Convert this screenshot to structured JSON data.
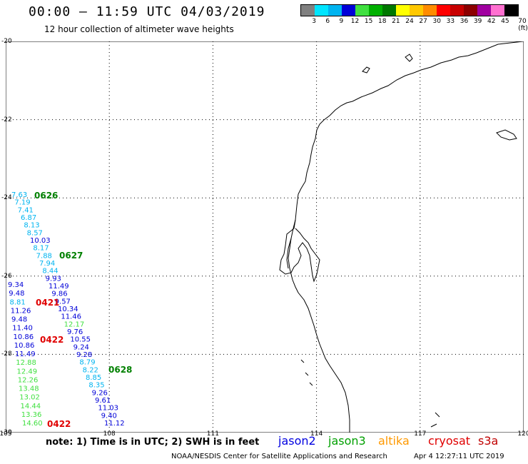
{
  "header": {
    "title": "00:00 – 11:59 UTC 04/03/2019",
    "subtitle": "12 hour collection of altimeter wave heights"
  },
  "color_scale": {
    "labels": [
      "3",
      "6",
      "9",
      "12",
      "15",
      "18",
      "21",
      "24",
      "27",
      "30",
      "33",
      "36",
      "39",
      "42",
      "45",
      "70 (ft)"
    ],
    "colors": [
      "#808080",
      "#00e5ff",
      "#00b4f0",
      "#0000d8",
      "#40e040",
      "#00b000",
      "#007800",
      "#ffff00",
      "#ffc800",
      "#ff8c00",
      "#ff0000",
      "#c80000",
      "#8c0000",
      "#a000a0",
      "#ff70d0",
      "#000000"
    ]
  },
  "map": {
    "lat_range": [
      -30,
      -20
    ],
    "lon_range": [
      105,
      120
    ],
    "lat_ticks": [
      "-30",
      "-28",
      "-26",
      "-24",
      "-22",
      "-20"
    ],
    "lon_ticks": [
      "105",
      "108",
      "111",
      "114",
      "117",
      "120"
    ]
  },
  "wave_labels": {
    "track1": [
      {
        "text": "7.63",
        "color": "#00b4f0"
      },
      {
        "text": "7.19",
        "color": "#00b4f0"
      },
      {
        "text": "7.41",
        "color": "#00b4f0"
      },
      {
        "text": "6.87",
        "color": "#00b4f0"
      },
      {
        "text": "8.13",
        "color": "#00b4f0"
      },
      {
        "text": "8.57",
        "color": "#00b4f0"
      },
      {
        "text": "10.03",
        "color": "#0000d8"
      },
      {
        "text": "8.17",
        "color": "#00b4f0"
      },
      {
        "text": "7.88",
        "color": "#00b4f0"
      },
      {
        "text": "7.94",
        "color": "#00b4f0"
      },
      {
        "text": "8.44",
        "color": "#00b4f0"
      },
      {
        "text": "9.93",
        "color": "#0000d8"
      },
      {
        "text": "11.49",
        "color": "#0000d8"
      },
      {
        "text": "9.86",
        "color": "#0000d8"
      },
      {
        "text": "9.57",
        "color": "#0000d8"
      },
      {
        "text": "10.34",
        "color": "#0000d8"
      },
      {
        "text": "11.46",
        "color": "#0000d8"
      },
      {
        "text": "12.17",
        "color": "#40e040"
      },
      {
        "text": "9.76",
        "color": "#0000d8"
      },
      {
        "text": "10.55",
        "color": "#0000d8"
      },
      {
        "text": "9.24",
        "color": "#0000d8"
      },
      {
        "text": "9.28",
        "color": "#0000d8"
      },
      {
        "text": "8.79",
        "color": "#00b4f0"
      },
      {
        "text": "8.22",
        "color": "#00b4f0"
      },
      {
        "text": "8.85",
        "color": "#00b4f0"
      },
      {
        "text": "8.35",
        "color": "#00b4f0"
      },
      {
        "text": "9.26",
        "color": "#0000d8"
      },
      {
        "text": "9.61",
        "color": "#0000d8"
      },
      {
        "text": "11.03",
        "color": "#0000d8"
      },
      {
        "text": "9.40",
        "color": "#0000d8"
      },
      {
        "text": "11.12",
        "color": "#0000d8"
      }
    ],
    "track2": [
      {
        "text": "9.34",
        "color": "#0000d8"
      },
      {
        "text": "9.48",
        "color": "#0000d8"
      },
      {
        "text": "8.81",
        "color": "#00b4f0"
      },
      {
        "text": "11.26",
        "color": "#0000d8"
      },
      {
        "text": "9.48",
        "color": "#0000d8"
      },
      {
        "text": "11.40",
        "color": "#0000d8"
      },
      {
        "text": "10.86",
        "color": "#0000d8"
      },
      {
        "text": "10.86",
        "color": "#0000d8"
      },
      {
        "text": "11.49",
        "color": "#0000d8"
      },
      {
        "text": "12.88",
        "color": "#40e040"
      },
      {
        "text": "12.49",
        "color": "#40e040"
      },
      {
        "text": "12.26",
        "color": "#40e040"
      },
      {
        "text": "13.48",
        "color": "#40e040"
      },
      {
        "text": "13.02",
        "color": "#40e040"
      },
      {
        "text": "14.44",
        "color": "#40e040"
      },
      {
        "text": "13.36",
        "color": "#40e040"
      },
      {
        "text": "14.60",
        "color": "#40e040"
      }
    ],
    "time_tags": [
      {
        "text": "0626",
        "color": "#008000"
      },
      {
        "text": "0627",
        "color": "#008000"
      },
      {
        "text": "0421",
        "color": "#e00000"
      },
      {
        "text": "0422",
        "color": "#e00000"
      },
      {
        "text": "0628",
        "color": "#008000"
      },
      {
        "text": "0422",
        "color": "#e00000"
      }
    ]
  },
  "footer": {
    "note": "note: 1) Time is in UTC; 2) SWH is in feet",
    "missions": [
      {
        "name": "jason2",
        "color": "#0000e0"
      },
      {
        "name": "jason3",
        "color": "#00a000"
      },
      {
        "name": "altika",
        "color": "#ff9900"
      },
      {
        "name": "cryosat",
        "color": "#e00000"
      },
      {
        "name": "s3a",
        "color": "#c00000"
      }
    ],
    "credit": "NOAA/NESDIS Center for Satellite Applications and Research",
    "timestamp": "Apr  4 12:27:11 UTC 2019"
  }
}
